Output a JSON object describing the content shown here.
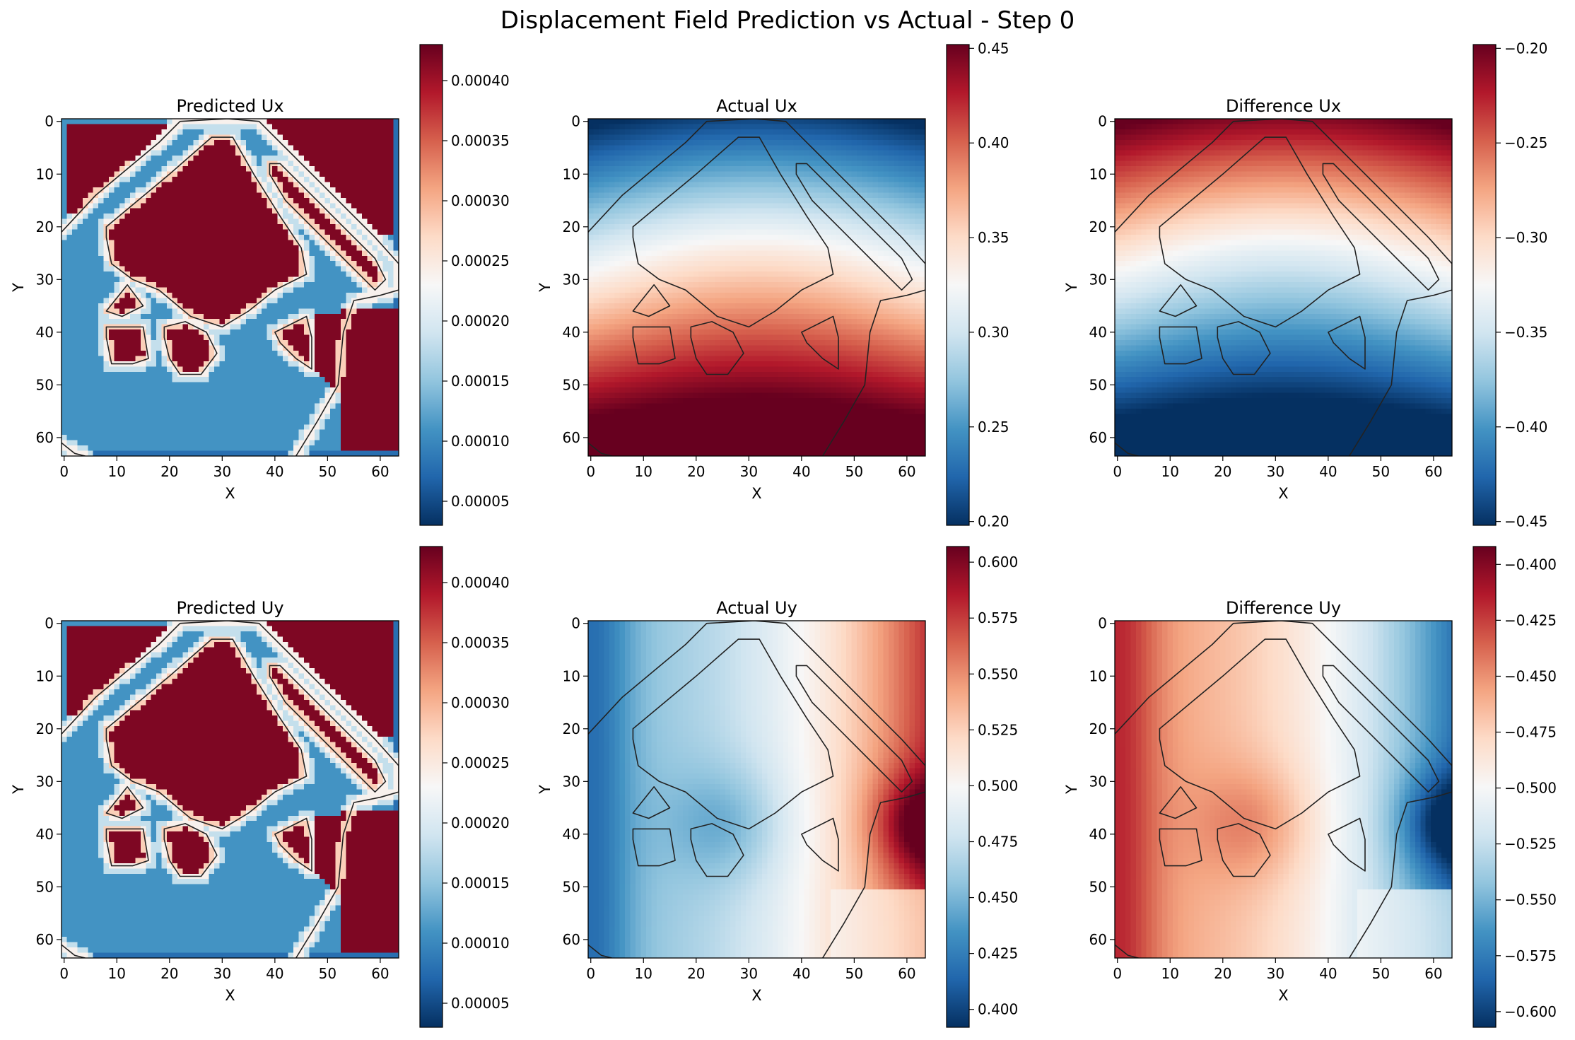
{
  "figure_title": "Displacement Field Prediction vs Actual - Step 0",
  "colormap": {
    "name": "RdBu_r",
    "stops": [
      "#053061",
      "#2166ac",
      "#4393c3",
      "#92c5de",
      "#d1e5f0",
      "#f7f7f7",
      "#fddbc7",
      "#f4a582",
      "#d6604d",
      "#b2182b",
      "#67001f"
    ],
    "contour_color": "#222222"
  },
  "chart_data": [
    {
      "type": "heatmap",
      "title": "Predicted Ux",
      "xlabel": "X",
      "ylabel": "Y",
      "grid_size": 64,
      "field": "predicted",
      "x_ticks": [
        0,
        10,
        20,
        30,
        40,
        50,
        60
      ],
      "y_ticks": [
        0,
        10,
        20,
        30,
        40,
        50,
        60
      ],
      "grid": false,
      "colorbar": {
        "min": 3e-05,
        "max": 0.00043,
        "ticks": [
          5e-05,
          0.0001,
          0.00015,
          0.0002,
          0.00025,
          0.0003,
          0.00035,
          0.0004
        ],
        "tick_labels": [
          "0.00005",
          "0.00010",
          "0.00015",
          "0.00020",
          "0.00025",
          "0.00030",
          "0.00035",
          "0.00040"
        ]
      }
    },
    {
      "type": "heatmap",
      "title": "Actual Ux",
      "xlabel": "X",
      "ylabel": "Y",
      "grid_size": 64,
      "field": "actual_ux",
      "x_ticks": [
        0,
        10,
        20,
        30,
        40,
        50,
        60
      ],
      "y_ticks": [
        0,
        10,
        20,
        30,
        40,
        50,
        60
      ],
      "grid": false,
      "colorbar": {
        "min": 0.198,
        "max": 0.452,
        "ticks": [
          0.2,
          0.25,
          0.3,
          0.35,
          0.4,
          0.45
        ],
        "tick_labels": [
          "0.20",
          "0.25",
          "0.30",
          "0.35",
          "0.40",
          "0.45"
        ]
      }
    },
    {
      "type": "heatmap",
      "title": "Difference Ux",
      "xlabel": "X",
      "ylabel": "Y",
      "grid_size": 64,
      "field": "diff_ux",
      "x_ticks": [
        0,
        10,
        20,
        30,
        40,
        50,
        60
      ],
      "y_ticks": [
        0,
        10,
        20,
        30,
        40,
        50,
        60
      ],
      "grid": false,
      "colorbar": {
        "min": -0.452,
        "max": -0.198,
        "ticks": [
          -0.45,
          -0.4,
          -0.35,
          -0.3,
          -0.25,
          -0.2
        ],
        "tick_labels": [
          "−0.45",
          "−0.40",
          "−0.35",
          "−0.30",
          "−0.25",
          "−0.20"
        ]
      }
    },
    {
      "type": "heatmap",
      "title": "Predicted Uy",
      "xlabel": "X",
      "ylabel": "Y",
      "grid_size": 64,
      "field": "predicted",
      "x_ticks": [
        0,
        10,
        20,
        30,
        40,
        50,
        60
      ],
      "y_ticks": [
        0,
        10,
        20,
        30,
        40,
        50,
        60
      ],
      "grid": false,
      "colorbar": {
        "min": 3e-05,
        "max": 0.00043,
        "ticks": [
          5e-05,
          0.0001,
          0.00015,
          0.0002,
          0.00025,
          0.0003,
          0.00035,
          0.0004
        ],
        "tick_labels": [
          "0.00005",
          "0.00010",
          "0.00015",
          "0.00020",
          "0.00025",
          "0.00030",
          "0.00035",
          "0.00040"
        ]
      }
    },
    {
      "type": "heatmap",
      "title": "Actual Uy",
      "xlabel": "X",
      "ylabel": "Y",
      "grid_size": 64,
      "field": "actual_uy",
      "x_ticks": [
        0,
        10,
        20,
        30,
        40,
        50,
        60
      ],
      "y_ticks": [
        0,
        10,
        20,
        30,
        40,
        50,
        60
      ],
      "grid": false,
      "colorbar": {
        "min": 0.392,
        "max": 0.607,
        "ticks": [
          0.4,
          0.425,
          0.45,
          0.475,
          0.5,
          0.525,
          0.55,
          0.575,
          0.6
        ],
        "tick_labels": [
          "0.400",
          "0.425",
          "0.450",
          "0.475",
          "0.500",
          "0.525",
          "0.550",
          "0.575",
          "0.600"
        ]
      }
    },
    {
      "type": "heatmap",
      "title": "Difference Uy",
      "xlabel": "X",
      "ylabel": "Y",
      "grid_size": 64,
      "field": "diff_uy",
      "x_ticks": [
        0,
        10,
        20,
        30,
        40,
        50,
        60
      ],
      "y_ticks": [
        0,
        10,
        20,
        30,
        40,
        50,
        60
      ],
      "grid": false,
      "colorbar": {
        "min": -0.607,
        "max": -0.392,
        "ticks": [
          -0.6,
          -0.575,
          -0.55,
          -0.525,
          -0.5,
          -0.475,
          -0.45,
          -0.425,
          -0.4
        ],
        "tick_labels": [
          "−0.600",
          "−0.575",
          "−0.550",
          "−0.525",
          "−0.500",
          "−0.475",
          "−0.450",
          "−0.425",
          "−0.400"
        ]
      }
    }
  ],
  "outline_polygons": [
    {
      "name": "outer-frame",
      "points": [
        [
          -0.5,
          21
        ],
        [
          6,
          14
        ],
        [
          12,
          9
        ],
        [
          18,
          4
        ],
        [
          22,
          0
        ],
        [
          31,
          -0.5
        ],
        [
          37,
          0
        ],
        [
          42,
          5
        ],
        [
          48,
          11
        ],
        [
          54,
          17
        ],
        [
          59,
          22
        ],
        [
          63.5,
          27
        ],
        [
          63.5,
          32
        ],
        [
          60,
          33
        ],
        [
          55,
          34
        ],
        [
          53,
          40
        ],
        [
          52,
          50
        ],
        [
          48,
          57
        ],
        [
          44,
          63.5
        ]
      ]
    },
    {
      "name": "diagonal-strip",
      "points": [
        [
          39,
          8
        ],
        [
          41,
          8
        ],
        [
          47,
          14
        ],
        [
          53,
          20
        ],
        [
          59,
          26
        ],
        [
          61,
          30
        ],
        [
          59,
          32
        ],
        [
          54,
          27
        ],
        [
          48,
          21
        ],
        [
          42,
          15
        ],
        [
          39,
          10
        ]
      ]
    },
    {
      "name": "center-quad",
      "points": [
        [
          8,
          20
        ],
        [
          20,
          10
        ],
        [
          28,
          3
        ],
        [
          32,
          3
        ],
        [
          36,
          10
        ],
        [
          41,
          18
        ],
        [
          45,
          24
        ],
        [
          46,
          29
        ],
        [
          40,
          32
        ],
        [
          35,
          36
        ],
        [
          30,
          39
        ],
        [
          24,
          37
        ],
        [
          18,
          32
        ],
        [
          13,
          30
        ],
        [
          9,
          27
        ],
        [
          8,
          22
        ]
      ]
    },
    {
      "name": "hole-1",
      "points": [
        [
          8,
          36
        ],
        [
          12,
          31
        ],
        [
          15,
          35
        ],
        [
          11,
          37
        ]
      ]
    },
    {
      "name": "hole-2",
      "points": [
        [
          8,
          39
        ],
        [
          15,
          39
        ],
        [
          16,
          45
        ],
        [
          13,
          46
        ],
        [
          9,
          46
        ],
        [
          8,
          41
        ]
      ]
    },
    {
      "name": "hole-3",
      "points": [
        [
          19,
          39
        ],
        [
          23,
          38
        ],
        [
          27,
          40
        ],
        [
          29,
          44
        ],
        [
          26,
          48
        ],
        [
          22,
          48
        ],
        [
          20,
          45
        ],
        [
          19,
          41
        ]
      ]
    },
    {
      "name": "hole-4",
      "points": [
        [
          40,
          40
        ],
        [
          46,
          37
        ],
        [
          47,
          41
        ],
        [
          47,
          47
        ],
        [
          44,
          45
        ],
        [
          41,
          42
        ]
      ]
    },
    {
      "name": "corner-left",
      "points": [
        [
          -0.5,
          61
        ],
        [
          2,
          63
        ],
        [
          4,
          63.5
        ]
      ]
    }
  ]
}
